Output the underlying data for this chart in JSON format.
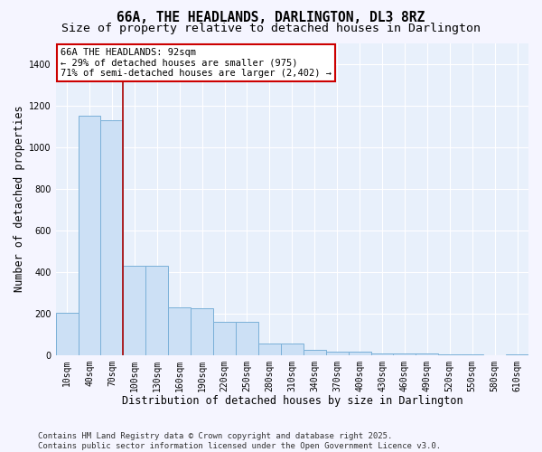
{
  "title": "66A, THE HEADLANDS, DARLINGTON, DL3 8RZ",
  "subtitle": "Size of property relative to detached houses in Darlington",
  "xlabel": "Distribution of detached houses by size in Darlington",
  "ylabel": "Number of detached properties",
  "categories": [
    "10sqm",
    "40sqm",
    "70sqm",
    "100sqm",
    "130sqm",
    "160sqm",
    "190sqm",
    "220sqm",
    "250sqm",
    "280sqm",
    "310sqm",
    "340sqm",
    "370sqm",
    "400sqm",
    "430sqm",
    "460sqm",
    "490sqm",
    "520sqm",
    "550sqm",
    "580sqm",
    "610sqm"
  ],
  "values": [
    205,
    1150,
    1130,
    430,
    430,
    230,
    225,
    160,
    158,
    55,
    55,
    25,
    15,
    15,
    8,
    8,
    8,
    2,
    2,
    0,
    5
  ],
  "bar_color": "#cce0f5",
  "bar_edge_color": "#7ab0d8",
  "vline_color": "#aa0000",
  "annotation_text": "66A THE HEADLANDS: 92sqm\n← 29% of detached houses are smaller (975)\n71% of semi-detached houses are larger (2,402) →",
  "annotation_box_color": "#ffffff",
  "annotation_box_edge": "#cc0000",
  "ylim": [
    0,
    1500
  ],
  "yticks": [
    0,
    200,
    400,
    600,
    800,
    1000,
    1200,
    1400
  ],
  "bg_color": "#e8f0fb",
  "grid_color": "#ffffff",
  "fig_bg_color": "#f5f5ff",
  "footer": "Contains HM Land Registry data © Crown copyright and database right 2025.\nContains public sector information licensed under the Open Government Licence v3.0.",
  "title_fontsize": 10.5,
  "subtitle_fontsize": 9.5,
  "label_fontsize": 8.5,
  "tick_fontsize": 7,
  "annotation_fontsize": 7.5,
  "footer_fontsize": 6.5
}
